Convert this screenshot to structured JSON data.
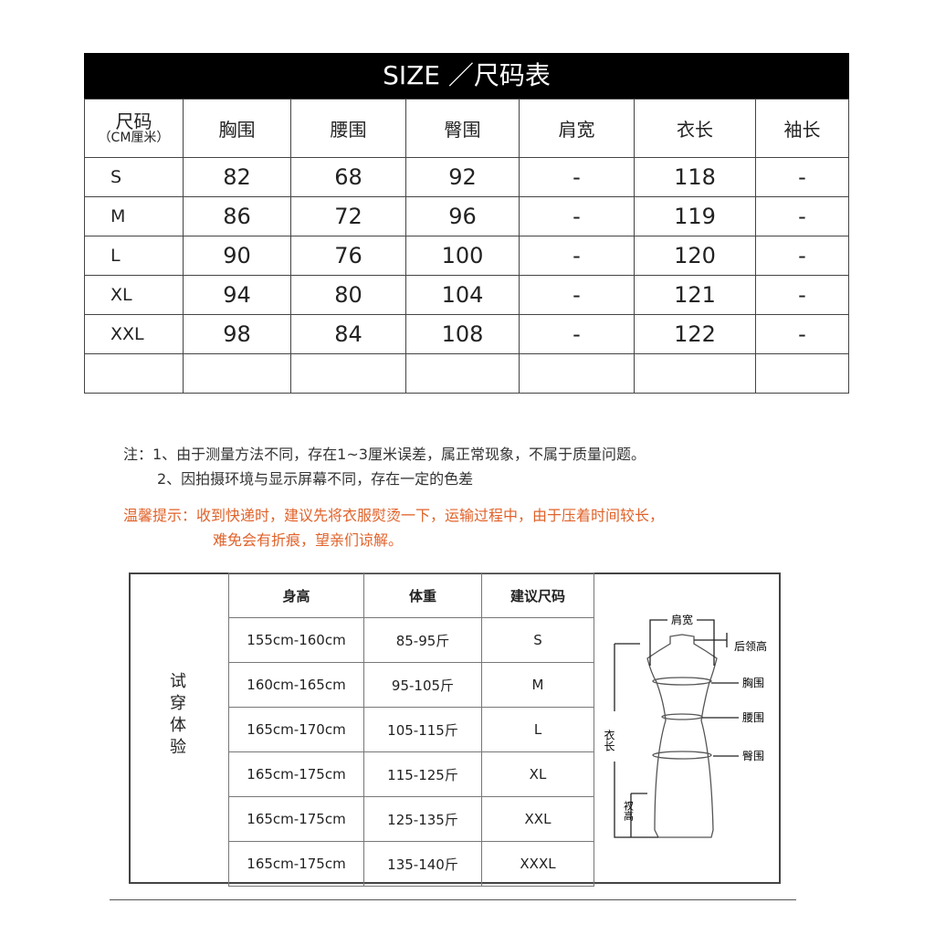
{
  "title": "SIZE ／尺码表",
  "size_table": {
    "header_size": "尺码",
    "header_unit": "（CM厘米）",
    "columns": [
      "胸围",
      "腰围",
      "臀围",
      "肩宽",
      "衣长",
      "袖长"
    ],
    "rows": [
      {
        "size": "S",
        "values": [
          "82",
          "68",
          "92",
          "-",
          "118",
          "-"
        ]
      },
      {
        "size": "M",
        "values": [
          "86",
          "72",
          "96",
          "-",
          "119",
          "-"
        ]
      },
      {
        "size": "L",
        "values": [
          "90",
          "76",
          "100",
          "-",
          "120",
          "-"
        ]
      },
      {
        "size": "XL",
        "values": [
          "94",
          "80",
          "104",
          "-",
          "121",
          "-"
        ]
      },
      {
        "size": "XXL",
        "values": [
          "98",
          "84",
          "108",
          "-",
          "122",
          "-"
        ]
      }
    ]
  },
  "notes": {
    "line1": "注：1、由于测量方法不同，存在1~3厘米误差，属正常现象，不属于质量问题。",
    "line2": "2、因拍摄环境与显示屏幕不同，存在一定的色差",
    "tip1": "温馨提示：收到快递时，建议先将衣服熨烫一下，运输过程中，由于压着时间较长，",
    "tip2": "难免会有折痕，望亲们谅解。",
    "tip_color": "#e0622a"
  },
  "fit": {
    "label": "试穿体验",
    "columns": [
      "身高",
      "体重",
      "建议尺码"
    ],
    "rows": [
      [
        "155cm-160cm",
        "85-95斤",
        "S"
      ],
      [
        "160cm-165cm",
        "95-105斤",
        "M"
      ],
      [
        "165cm-170cm",
        "105-115斤",
        "L"
      ],
      [
        "165cm-175cm",
        "115-125斤",
        "XL"
      ],
      [
        "165cm-175cm",
        "125-135斤",
        "XXL"
      ],
      [
        "165cm-175cm",
        "135-140斤",
        "XXXL"
      ]
    ]
  },
  "diagram": {
    "shoulder": "肩宽",
    "collar": "后领高",
    "chest": "胸围",
    "waist": "腰围",
    "hip": "臀围",
    "length": "衣长",
    "slit": "衩高"
  }
}
